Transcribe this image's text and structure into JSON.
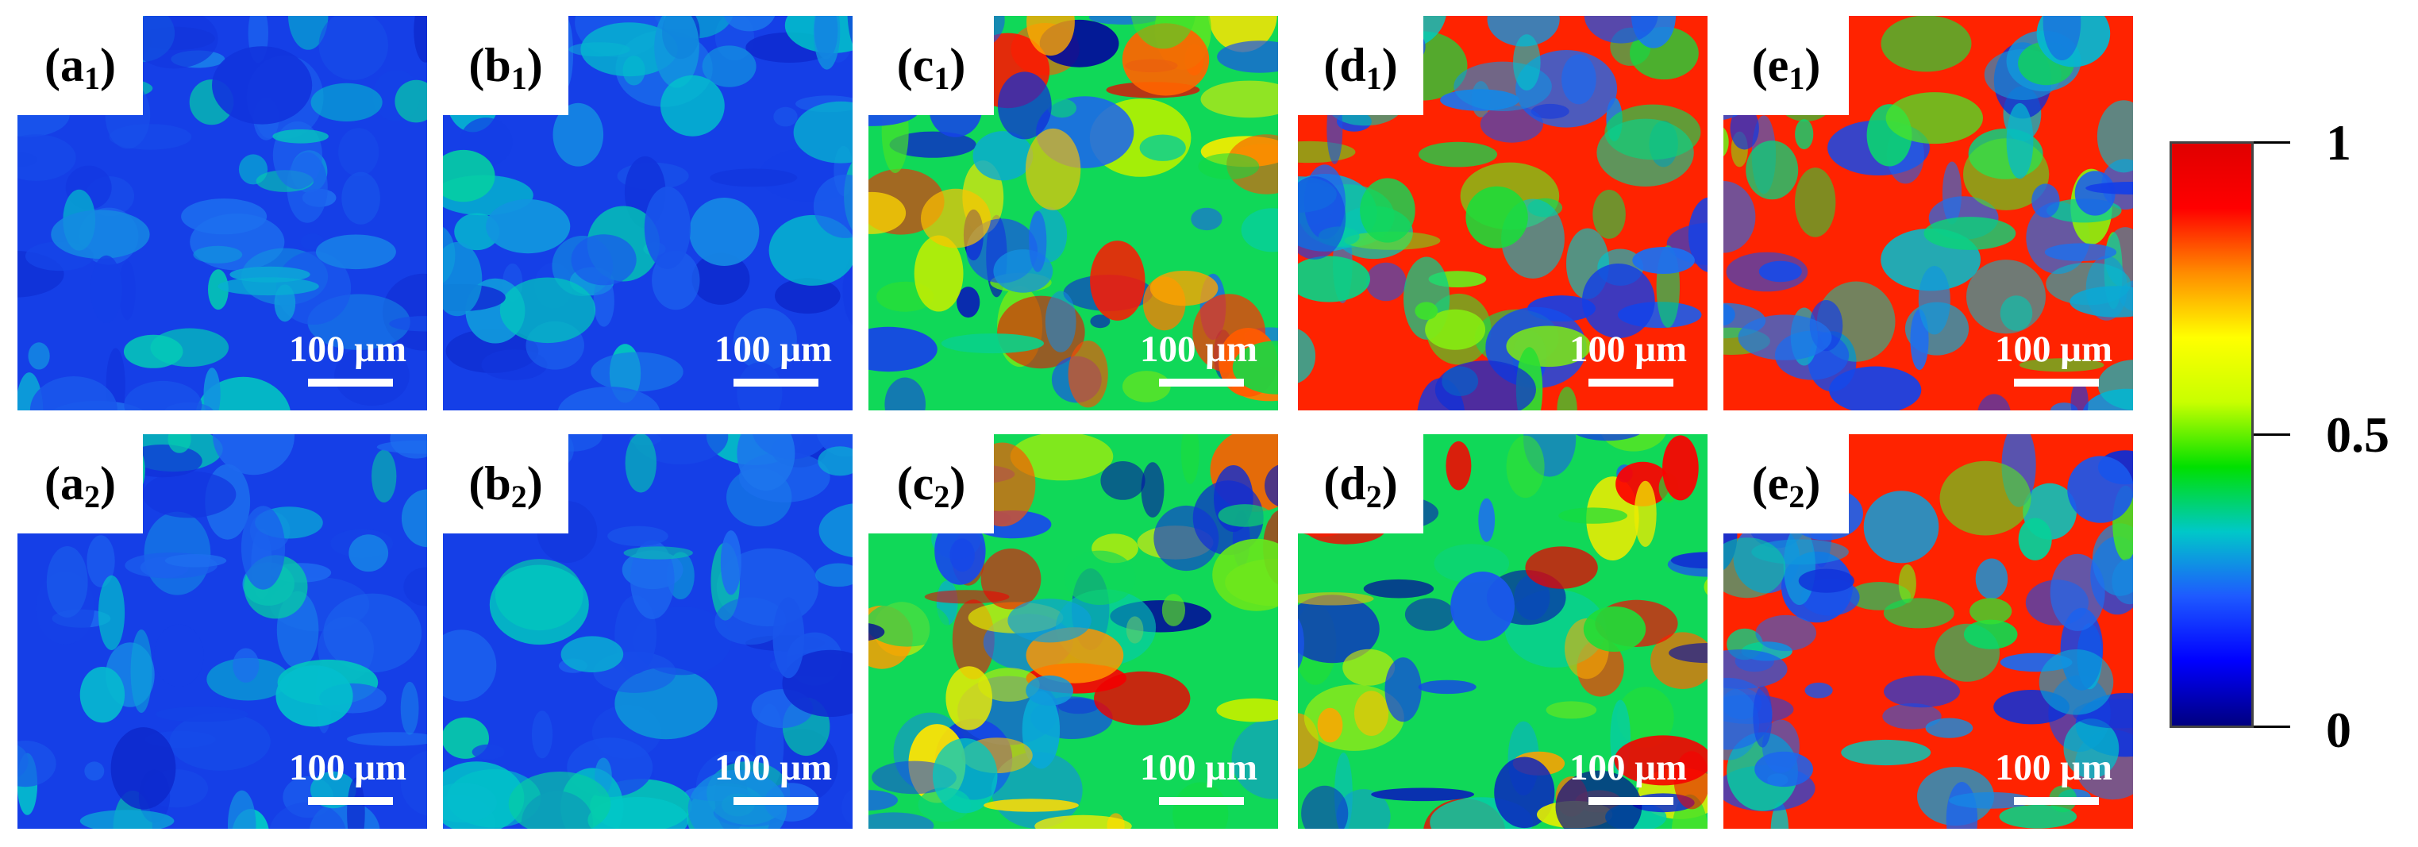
{
  "panels": [
    {
      "id": "a1",
      "letter": "a",
      "sub": "1",
      "scale": "100 μm",
      "level": 0.1
    },
    {
      "id": "b1",
      "letter": "b",
      "sub": "1",
      "scale": "100 μm",
      "level": 0.2
    },
    {
      "id": "c1",
      "letter": "c",
      "sub": "1",
      "scale": "100 μm",
      "level": 0.52
    },
    {
      "id": "d1",
      "letter": "d",
      "sub": "1",
      "scale": "100 μm",
      "level": 0.72
    },
    {
      "id": "e1",
      "letter": "e",
      "sub": "1",
      "scale": "100 μm",
      "level": 0.82
    },
    {
      "id": "a2",
      "letter": "a",
      "sub": "2",
      "scale": "100 μm",
      "level": 0.12
    },
    {
      "id": "b2",
      "letter": "b",
      "sub": "2",
      "scale": "100 μm",
      "level": 0.18
    },
    {
      "id": "c2",
      "letter": "c",
      "sub": "2",
      "scale": "100 μm",
      "level": 0.4
    },
    {
      "id": "d2",
      "letter": "d",
      "sub": "2",
      "scale": "100 μm",
      "level": 0.6
    },
    {
      "id": "e2",
      "letter": "e",
      "sub": "2",
      "scale": "100 μm",
      "level": 0.72
    }
  ],
  "colorbar": {
    "labels": {
      "max": "1",
      "mid": "0.5",
      "min": "0"
    },
    "colors": [
      "#000080",
      "#0000ff",
      "#1e5aff",
      "#00c8c8",
      "#00e000",
      "#c8ff00",
      "#ffff00",
      "#ff8c00",
      "#ff0000",
      "#e00000"
    ]
  }
}
